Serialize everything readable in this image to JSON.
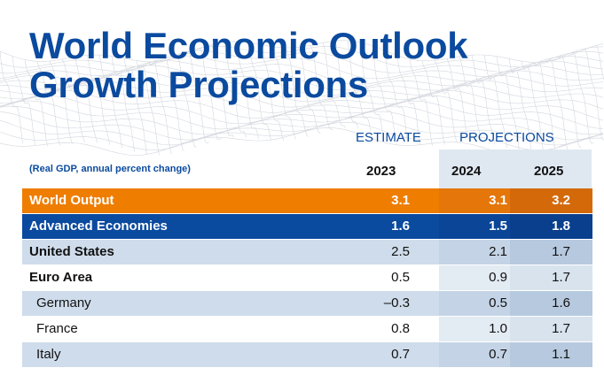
{
  "title": {
    "line1": "World Economic Outlook",
    "line2": "Growth Projections"
  },
  "headers": {
    "estimate": "ESTIMATE",
    "projections": "PROJECTIONS"
  },
  "subtitle": "(Real GDP, annual percent change)",
  "years": [
    "2023",
    "2024",
    "2025"
  ],
  "rows": [
    {
      "name": "World Output",
      "values": [
        "3.1",
        "3.1",
        "3.2"
      ]
    },
    {
      "name": "Advanced Economies",
      "values": [
        "1.6",
        "1.5",
        "1.8"
      ]
    },
    {
      "name": "United States",
      "values": [
        "2.5",
        "2.1",
        "1.7"
      ]
    },
    {
      "name": "Euro Area",
      "values": [
        "0.5",
        "0.9",
        "1.7"
      ]
    },
    {
      "name": "Germany",
      "values": [
        "–0.3",
        "0.5",
        "1.6"
      ]
    },
    {
      "name": "France",
      "values": [
        "0.8",
        "1.0",
        "1.7"
      ]
    },
    {
      "name": "Italy",
      "values": [
        "0.7",
        "0.7",
        "1.1"
      ]
    }
  ],
  "colors": {
    "brand_blue": "#0a4a9f",
    "highlight_orange": "#ee7d00",
    "row_shade": "#cfdceb"
  }
}
